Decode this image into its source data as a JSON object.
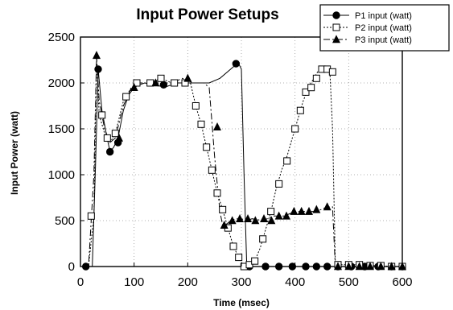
{
  "chart_data": {
    "type": "line",
    "title": "Input Power Setups",
    "xlabel": "Time  (msec)",
    "ylabel": "Input  Power  (watt)",
    "xlim": [
      0,
      600
    ],
    "ylim": [
      0,
      2500
    ],
    "xticks": [
      "0",
      "100",
      "200",
      "300",
      "400",
      "500",
      "600"
    ],
    "yticks": [
      "0",
      "500",
      "1000",
      "1500",
      "2000",
      "2500"
    ],
    "grid": true,
    "legend_position": "top-right",
    "series": [
      {
        "name": "P1 input (watt)",
        "marker": "circle",
        "dash": "",
        "x": [
          0,
          8,
          14,
          22,
          28,
          33,
          40,
          48,
          55,
          62,
          70,
          80,
          90,
          100,
          110,
          120,
          140,
          160,
          180,
          200,
          220,
          240,
          260,
          280,
          290,
          295,
          300,
          305,
          310,
          315,
          320,
          340,
          360,
          380,
          400,
          420,
          440,
          460,
          480,
          500,
          520,
          540,
          560,
          580,
          600
        ],
        "y": [
          0,
          0,
          0,
          0,
          1100,
          2150,
          1700,
          1450,
          1250,
          1300,
          1400,
          1700,
          1870,
          1950,
          1980,
          2000,
          1970,
          1960,
          2000,
          2000,
          2000,
          2000,
          2050,
          2150,
          2200,
          2210,
          2150,
          1000,
          0,
          0,
          0,
          0,
          0,
          0,
          0,
          0,
          0,
          0,
          0,
          0,
          0,
          0,
          0,
          0,
          0
        ],
        "marker_x": [
          10,
          33,
          55,
          70,
          155,
          290,
          315,
          345,
          370,
          395,
          420,
          440,
          460,
          480,
          505,
          530,
          555,
          580,
          600
        ],
        "marker_y": [
          0,
          2150,
          1250,
          1350,
          1980,
          2210,
          0,
          0,
          0,
          0,
          0,
          0,
          0,
          0,
          0,
          0,
          0,
          0,
          0
        ]
      },
      {
        "name": "P2 input (watt)",
        "marker": "square",
        "dash": "2 2",
        "x": [
          0,
          15,
          25,
          30,
          35,
          45,
          55,
          65,
          80,
          95,
          110,
          130,
          150,
          170,
          190,
          205,
          215,
          225,
          235,
          245,
          255,
          265,
          275,
          285,
          295,
          305,
          315,
          325,
          335,
          345,
          355,
          365,
          375,
          385,
          395,
          405,
          415,
          425,
          435,
          445,
          455,
          465,
          470,
          475,
          480,
          500,
          520,
          540,
          560,
          580,
          600
        ],
        "y": [
          0,
          0,
          550,
          2250,
          1650,
          1450,
          1350,
          1450,
          1800,
          1950,
          2000,
          2000,
          2050,
          2000,
          2000,
          2000,
          1750,
          1550,
          1300,
          1050,
          800,
          620,
          420,
          220,
          100,
          0,
          20,
          60,
          200,
          400,
          600,
          850,
          1050,
          1200,
          1400,
          1600,
          1800,
          1950,
          2050,
          2150,
          2150,
          2120,
          1500,
          50,
          20,
          20,
          20,
          10,
          10,
          0,
          0
        ],
        "marker_x": [
          20,
          40,
          50,
          65,
          85,
          105,
          130,
          150,
          175,
          195,
          215,
          225,
          235,
          245,
          255,
          265,
          275,
          285,
          295,
          305,
          315,
          325,
          340,
          355,
          370,
          385,
          400,
          410,
          420,
          430,
          440,
          450,
          460,
          470,
          480,
          500,
          520,
          540,
          560,
          580,
          600
        ],
        "marker_y": [
          550,
          1650,
          1400,
          1450,
          1850,
          2000,
          2000,
          2050,
          2000,
          2000,
          1750,
          1550,
          1300,
          1050,
          800,
          620,
          420,
          220,
          100,
          0,
          20,
          60,
          300,
          600,
          900,
          1150,
          1500,
          1700,
          1900,
          1950,
          2050,
          2150,
          2150,
          2120,
          20,
          20,
          20,
          10,
          10,
          0,
          0
        ]
      },
      {
        "name": "P3 input (watt)",
        "marker": "triangle",
        "dash": "8 3 2 3",
        "x": [
          0,
          15,
          25,
          30,
          35,
          45,
          55,
          65,
          80,
          95,
          110,
          130,
          150,
          170,
          190,
          210,
          230,
          240,
          250,
          260,
          265,
          270,
          280,
          290,
          300,
          310,
          320,
          340,
          360,
          380,
          400,
          420,
          440,
          460,
          470,
          475,
          480,
          500,
          520,
          540,
          560,
          580,
          600
        ],
        "y": [
          0,
          0,
          1000,
          2300,
          1800,
          1500,
          1350,
          1400,
          1750,
          1950,
          2000,
          2000,
          2000,
          2000,
          2050,
          2000,
          2000,
          1950,
          1200,
          600,
          450,
          450,
          500,
          520,
          520,
          500,
          520,
          500,
          550,
          550,
          600,
          600,
          600,
          650,
          650,
          0,
          0,
          0,
          0,
          0,
          0,
          0,
          0
        ],
        "marker_x": [
          30,
          72,
          100,
          140,
          200,
          255,
          268,
          283,
          297,
          312,
          326,
          342,
          356,
          370,
          384,
          398,
          412,
          426,
          440,
          460,
          480,
          500,
          520,
          540,
          560,
          580,
          600
        ],
        "marker_y": [
          2300,
          1400,
          1950,
          2000,
          2050,
          1520,
          450,
          500,
          520,
          520,
          500,
          520,
          500,
          550,
          550,
          600,
          600,
          600,
          620,
          650,
          0,
          0,
          0,
          0,
          0,
          0,
          0
        ]
      }
    ]
  }
}
